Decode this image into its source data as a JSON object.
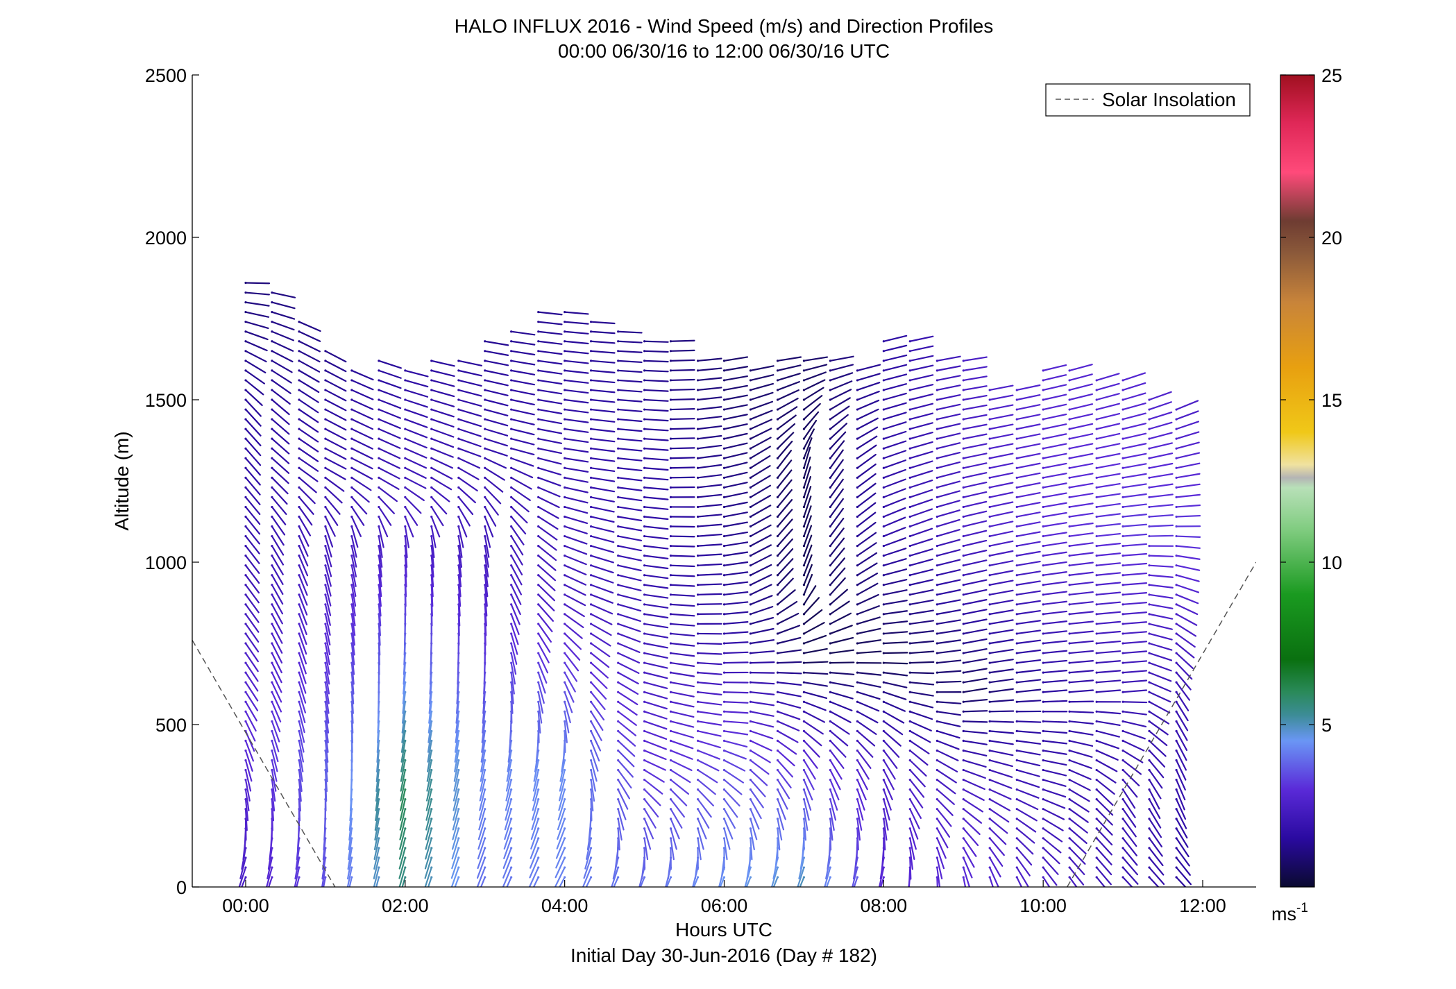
{
  "chart_data": {
    "type": "wind-barb-profile",
    "title": "HALO INFLUX 2016 - Wind Speed (m/s) and Direction Profiles",
    "subtitle": "00:00 06/30/16 to 12:00 06/30/16  UTC",
    "xlabel": "Hours UTC",
    "xlabel2": "Initial Day 30-Jun-2016 (Day # 182)",
    "ylabel": "Altitude (m)",
    "xlim_hours": [
      -0.67,
      12.67
    ],
    "ylim": [
      0,
      2500
    ],
    "x_ticks": [
      {
        "value": 0,
        "label": "00:00"
      },
      {
        "value": 2,
        "label": "02:00"
      },
      {
        "value": 4,
        "label": "04:00"
      },
      {
        "value": 6,
        "label": "06:00"
      },
      {
        "value": 8,
        "label": "08:00"
      },
      {
        "value": 10,
        "label": "10:00"
      },
      {
        "value": 12,
        "label": "12:00"
      }
    ],
    "y_ticks": [
      {
        "value": 0,
        "label": "0"
      },
      {
        "value": 500,
        "label": "500"
      },
      {
        "value": 1000,
        "label": "1000"
      },
      {
        "value": 1500,
        "label": "1500"
      },
      {
        "value": 2000,
        "label": "2000"
      },
      {
        "value": 2500,
        "label": "2500"
      }
    ],
    "colorbar": {
      "range": [
        0,
        25
      ],
      "unit_label": "ms",
      "unit_exponent": "-1",
      "ticks": [
        {
          "value": 5,
          "label": "5"
        },
        {
          "value": 10,
          "label": "10"
        },
        {
          "value": 15,
          "label": "15"
        },
        {
          "value": 20,
          "label": "20"
        },
        {
          "value": 25,
          "label": "25"
        }
      ],
      "stops": [
        {
          "v": 0,
          "color": "#0a0a30"
        },
        {
          "v": 1.5,
          "color": "#2a0aa0"
        },
        {
          "v": 3,
          "color": "#5a2ad8"
        },
        {
          "v": 4.5,
          "color": "#6a96f5"
        },
        {
          "v": 5.3,
          "color": "#3c8c96"
        },
        {
          "v": 6,
          "color": "#2a8a5a"
        },
        {
          "v": 7,
          "color": "#0a7010"
        },
        {
          "v": 9,
          "color": "#1a9a20"
        },
        {
          "v": 11,
          "color": "#80cc80"
        },
        {
          "v": 12.3,
          "color": "#b8e0b8"
        },
        {
          "v": 12.6,
          "color": "#b4b4b4"
        },
        {
          "v": 13,
          "color": "#f0e2a0"
        },
        {
          "v": 14,
          "color": "#f0c818"
        },
        {
          "v": 16,
          "color": "#e8a010"
        },
        {
          "v": 18,
          "color": "#c8843a"
        },
        {
          "v": 19.5,
          "color": "#8c5a3a"
        },
        {
          "v": 20.5,
          "color": "#6e3c32"
        },
        {
          "v": 22,
          "color": "#ff4a7a"
        },
        {
          "v": 23.5,
          "color": "#e02858"
        },
        {
          "v": 25,
          "color": "#a01020"
        }
      ]
    },
    "solar_insolation": {
      "name": "Solar Insolation",
      "style": "dashed",
      "color": "#555555",
      "segments": [
        [
          [
            -0.67,
            760
          ],
          [
            1.12,
            0
          ]
        ],
        [
          [
            10.3,
            0
          ],
          [
            12.67,
            1000
          ]
        ]
      ]
    },
    "legend": {
      "entries": [
        "Solar Insolation"
      ],
      "placement": "top-right"
    },
    "barbs": {
      "profile_times_hours": [
        0,
        0.33,
        0.67,
        1.0,
        1.33,
        1.67,
        2.0,
        2.33,
        2.67,
        3.0,
        3.33,
        3.67,
        4.0,
        4.33,
        4.67,
        5.0,
        5.33,
        5.67,
        6.0,
        6.33,
        6.67,
        7.0,
        7.33,
        7.67,
        8.0,
        8.33,
        8.67,
        9.0,
        9.33,
        9.67,
        10.0,
        10.33,
        10.67,
        11.0,
        11.33,
        11.67
      ],
      "profile_tops_m": [
        1870,
        1830,
        1740,
        1660,
        1610,
        1620,
        1615,
        1620,
        1640,
        1700,
        1720,
        1780,
        1790,
        1760,
        1720,
        1680,
        1680,
        1630,
        1630,
        1610,
        1620,
        1620,
        1620,
        1610,
        1700,
        1700,
        1620,
        1620,
        1540,
        1540,
        1600,
        1600,
        1580,
        1560,
        1520,
        1480
      ],
      "altitude_step_m": 30,
      "first_altitude_m": 30,
      "segment_points": [
        {
          "h": 0,
          "dir": [
            [
              30,
              200
            ],
            [
              200,
              180
            ],
            [
              600,
              150
            ],
            [
              1500,
              140
            ],
            [
              1870,
              90
            ]
          ],
          "spd": [
            [
              30,
              2.5
            ],
            [
              500,
              3.0
            ],
            [
              1000,
              2.0
            ],
            [
              1870,
              1.0
            ]
          ]
        },
        {
          "h": 1.0,
          "dir": [
            [
              30,
              190
            ],
            [
              400,
              175
            ],
            [
              1100,
              165
            ],
            [
              1300,
              120
            ],
            [
              1660,
              120
            ]
          ],
          "spd": [
            [
              30,
              3.5
            ],
            [
              400,
              3.8
            ],
            [
              1100,
              2.2
            ],
            [
              1660,
              1.2
            ]
          ]
        },
        {
          "h": 2.0,
          "dir": [
            [
              30,
              195
            ],
            [
              400,
              190
            ],
            [
              1100,
              175
            ],
            [
              1250,
              120
            ],
            [
              1620,
              105
            ]
          ],
          "spd": [
            [
              30,
              5.5
            ],
            [
              300,
              6.0
            ],
            [
              1100,
              2.5
            ],
            [
              1620,
              1.5
            ]
          ]
        },
        {
          "h": 3.0,
          "dir": [
            [
              30,
              200
            ],
            [
              400,
              190
            ],
            [
              1100,
              170
            ],
            [
              1350,
              110
            ],
            [
              1700,
              100
            ]
          ],
          "spd": [
            [
              30,
              4.0
            ],
            [
              400,
              4.3
            ],
            [
              1100,
              2.2
            ],
            [
              1700,
              1.3
            ]
          ]
        },
        {
          "h": 4.0,
          "dir": [
            [
              30,
              205
            ],
            [
              400,
              190
            ],
            [
              900,
              120
            ],
            [
              1300,
              100
            ],
            [
              1790,
              95
            ]
          ],
          "spd": [
            [
              30,
              4.2
            ],
            [
              400,
              4.4
            ],
            [
              900,
              2.3
            ],
            [
              1790,
              1.3
            ]
          ]
        },
        {
          "h": 5.0,
          "dir": [
            [
              30,
              200
            ],
            [
              400,
              115
            ],
            [
              800,
              100
            ],
            [
              1300,
              95
            ],
            [
              1680,
              92
            ]
          ],
          "spd": [
            [
              30,
              4.0
            ],
            [
              400,
              3.0
            ],
            [
              800,
              2.0
            ],
            [
              1680,
              1.2
            ]
          ]
        },
        {
          "h": 6.0,
          "dir": [
            [
              30,
              200
            ],
            [
              500,
              95
            ],
            [
              800,
              85
            ],
            [
              1300,
              75
            ],
            [
              1630,
              80
            ]
          ],
          "spd": [
            [
              30,
              4.5
            ],
            [
              500,
              3.0
            ],
            [
              800,
              1.5
            ],
            [
              1630,
              0.8
            ]
          ]
        },
        {
          "h": 7.0,
          "dir": [
            [
              30,
              200
            ],
            [
              400,
              150
            ],
            [
              700,
              85
            ],
            [
              900,
              20
            ],
            [
              1300,
              15
            ],
            [
              1620,
              80
            ]
          ],
          "spd": [
            [
              30,
              5.0
            ],
            [
              400,
              3.0
            ],
            [
              700,
              0.5
            ],
            [
              1300,
              0.6
            ],
            [
              1620,
              0.8
            ]
          ]
        },
        {
          "h": 8.0,
          "dir": [
            [
              30,
              195
            ],
            [
              400,
              150
            ],
            [
              700,
              90
            ],
            [
              1100,
              65
            ],
            [
              1620,
              75
            ]
          ],
          "spd": [
            [
              30,
              3.0
            ],
            [
              400,
              2.5
            ],
            [
              700,
              0.5
            ],
            [
              1100,
              1.8
            ],
            [
              1620,
              1.6
            ]
          ]
        },
        {
          "h": 9.0,
          "dir": [
            [
              30,
              170
            ],
            [
              300,
              120
            ],
            [
              600,
              80
            ],
            [
              1100,
              75
            ],
            [
              1620,
              80
            ]
          ],
          "spd": [
            [
              30,
              3.0
            ],
            [
              300,
              2.5
            ],
            [
              600,
              0.7
            ],
            [
              1100,
              2.5
            ],
            [
              1620,
              2.5
            ]
          ]
        },
        {
          "h": 10.0,
          "dir": [
            [
              30,
              150
            ],
            [
              300,
              110
            ],
            [
              600,
              85
            ],
            [
              1100,
              80
            ],
            [
              1600,
              75
            ]
          ],
          "spd": [
            [
              30,
              2.5
            ],
            [
              300,
              2.0
            ],
            [
              600,
              1.5
            ],
            [
              1100,
              3.0
            ],
            [
              1600,
              2.8
            ]
          ]
        },
        {
          "h": 11.0,
          "dir": [
            [
              30,
              140
            ],
            [
              300,
              150
            ],
            [
              600,
              85
            ],
            [
              1100,
              85
            ],
            [
              1560,
              70
            ]
          ],
          "spd": [
            [
              30,
              2.0
            ],
            [
              300,
              2.0
            ],
            [
              600,
              2.0
            ],
            [
              1100,
              3.2
            ],
            [
              1560,
              2.8
            ]
          ]
        },
        {
          "h": 11.67,
          "dir": [
            [
              30,
              140
            ],
            [
              300,
              160
            ],
            [
              600,
              150
            ],
            [
              1100,
              90
            ],
            [
              1480,
              65
            ]
          ],
          "spd": [
            [
              30,
              1.5
            ],
            [
              300,
              1.8
            ],
            [
              600,
              2.0
            ],
            [
              1100,
              3.2
            ],
            [
              1480,
              2.5
            ]
          ]
        }
      ]
    }
  }
}
